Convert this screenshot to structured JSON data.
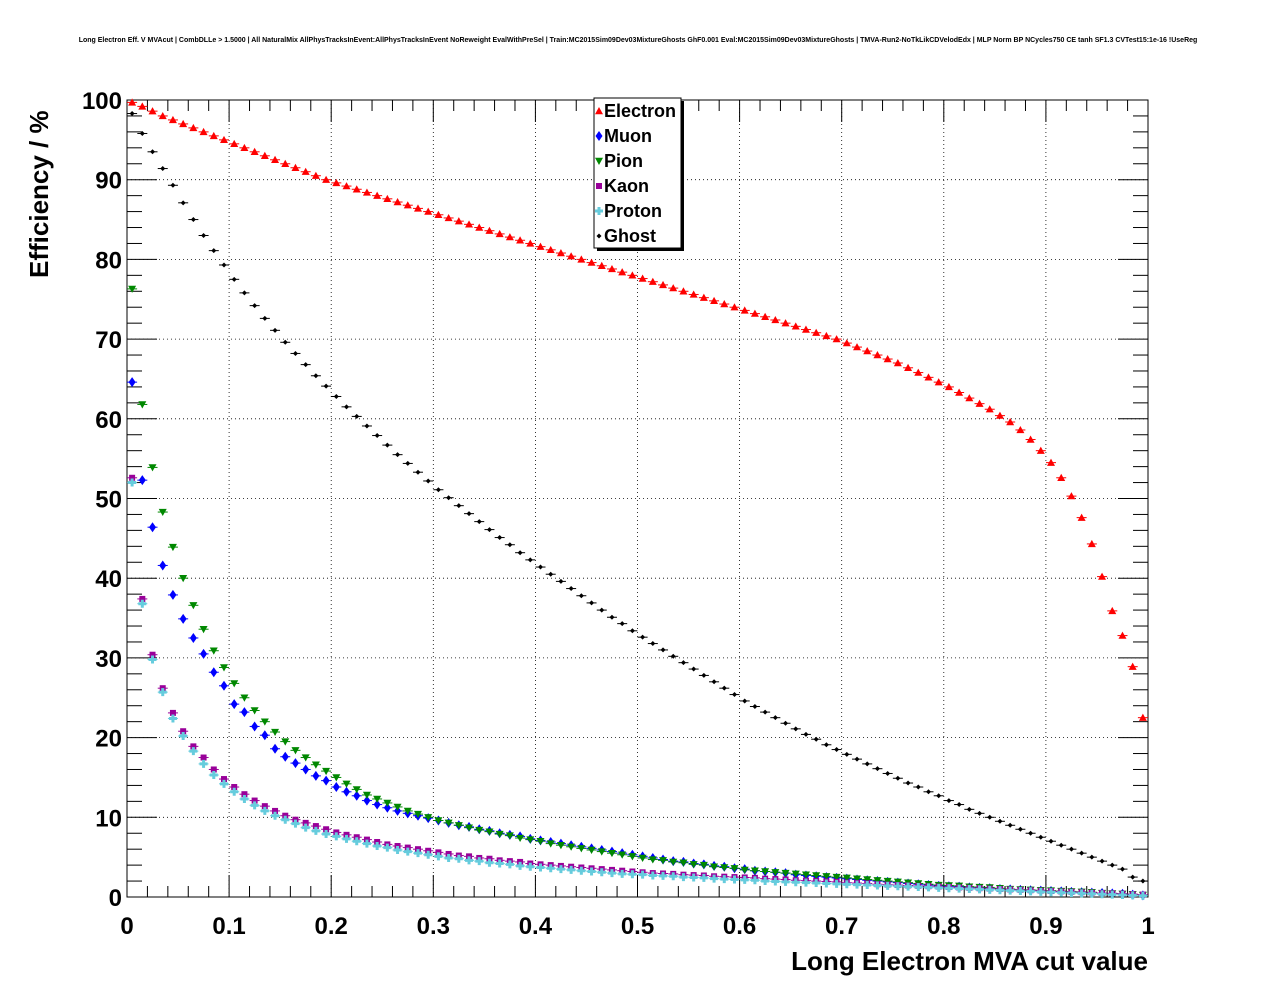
{
  "chart_data": {
    "type": "scatter",
    "title": "Long Electron Eff. V MVAcut | CombDLLe > 1.5000 | All NaturalMix AllPhysTracksInEvent:AllPhysTracksInEvent NoReweight EvalWithPreSel | Train:MC2015Sim09Dev03MixtureGhosts GhF0.001 Eval:MC2015Sim09Dev03MixtureGhosts | TMVA-Run2-NoTkLikCDVelodEdx | MLP Norm BP NCycles750 CE tanh SF1.3 CVTest15:1e-16 !UseReg",
    "xlabel": "Long Electron MVA cut value",
    "ylabel": "Efficiency / %",
    "xlim": [
      0,
      1
    ],
    "ylim": [
      0,
      100
    ],
    "xticks": [
      "0",
      "0.1",
      "0.2",
      "0.3",
      "0.4",
      "0.5",
      "0.6",
      "0.7",
      "0.8",
      "0.9",
      "1"
    ],
    "yticks": [
      "0",
      "10",
      "20",
      "30",
      "40",
      "50",
      "60",
      "70",
      "80",
      "90",
      "100"
    ],
    "grid": true,
    "legend_position": "top-center",
    "x": [
      0.005,
      0.015,
      0.025,
      0.035,
      0.045,
      0.055,
      0.065,
      0.075,
      0.085,
      0.095,
      0.105,
      0.115,
      0.125,
      0.135,
      0.145,
      0.155,
      0.165,
      0.175,
      0.185,
      0.195,
      0.205,
      0.215,
      0.225,
      0.235,
      0.245,
      0.255,
      0.265,
      0.275,
      0.285,
      0.295,
      0.305,
      0.315,
      0.325,
      0.335,
      0.345,
      0.355,
      0.365,
      0.375,
      0.385,
      0.395,
      0.405,
      0.415,
      0.425,
      0.435,
      0.445,
      0.455,
      0.465,
      0.475,
      0.485,
      0.495,
      0.505,
      0.515,
      0.525,
      0.535,
      0.545,
      0.555,
      0.565,
      0.575,
      0.585,
      0.595,
      0.605,
      0.615,
      0.625,
      0.635,
      0.645,
      0.655,
      0.665,
      0.675,
      0.685,
      0.695,
      0.705,
      0.715,
      0.725,
      0.735,
      0.745,
      0.755,
      0.765,
      0.775,
      0.785,
      0.795,
      0.805,
      0.815,
      0.825,
      0.835,
      0.845,
      0.855,
      0.865,
      0.875,
      0.885,
      0.895,
      0.905,
      0.915,
      0.925,
      0.935,
      0.945,
      0.955,
      0.965,
      0.975,
      0.985,
      0.995
    ],
    "series": [
      {
        "name": "Electron",
        "color": "#ff0000",
        "marker": "triangle-up",
        "values": [
          99.7,
          99.2,
          98.6,
          98.0,
          97.5,
          97.0,
          96.5,
          96.0,
          95.5,
          95.0,
          94.5,
          94.0,
          93.5,
          93.0,
          92.5,
          92.0,
          91.5,
          91.0,
          90.5,
          90.0,
          89.6,
          89.2,
          88.8,
          88.4,
          88.0,
          87.6,
          87.2,
          86.8,
          86.4,
          86.0,
          85.6,
          85.2,
          84.8,
          84.4,
          84.0,
          83.6,
          83.2,
          82.8,
          82.4,
          82.0,
          81.6,
          81.2,
          80.8,
          80.4,
          80.0,
          79.6,
          79.2,
          78.8,
          78.4,
          78.0,
          77.6,
          77.2,
          76.8,
          76.4,
          76.0,
          75.6,
          75.2,
          74.8,
          74.4,
          74.0,
          73.6,
          73.2,
          72.8,
          72.4,
          72.0,
          71.6,
          71.2,
          70.8,
          70.4,
          70.0,
          69.5,
          69.0,
          68.5,
          68.0,
          67.5,
          67.0,
          66.4,
          65.8,
          65.2,
          64.6,
          64.0,
          63.3,
          62.6,
          61.9,
          61.2,
          60.4,
          59.6,
          58.6,
          57.4,
          56.0,
          54.5,
          52.6,
          50.3,
          47.6,
          44.3,
          40.2,
          35.9,
          32.8,
          28.9,
          22.5
        ]
      },
      {
        "name": "Muon",
        "color": "#0000ff",
        "marker": "diamond",
        "values": [
          64.6,
          52.3,
          46.4,
          41.6,
          37.9,
          34.9,
          32.5,
          30.5,
          28.2,
          26.5,
          24.2,
          23.2,
          21.4,
          20.3,
          18.6,
          17.6,
          16.8,
          16.0,
          15.2,
          14.6,
          13.8,
          13.2,
          12.7,
          12.1,
          11.6,
          11.2,
          10.8,
          10.5,
          10.2,
          9.9,
          9.6,
          9.3,
          9.0,
          8.8,
          8.5,
          8.3,
          8.0,
          7.8,
          7.6,
          7.3,
          7.1,
          6.9,
          6.7,
          6.5,
          6.3,
          6.1,
          5.9,
          5.7,
          5.5,
          5.3,
          5.1,
          4.9,
          4.7,
          4.5,
          4.4,
          4.2,
          4.1,
          3.9,
          3.8,
          3.6,
          3.5,
          3.3,
          3.2,
          3.1,
          3.0,
          2.8,
          2.7,
          2.6,
          2.5,
          2.4,
          2.3,
          2.2,
          2.1,
          2.0,
          1.9,
          1.8,
          1.7,
          1.6,
          1.5,
          1.4,
          1.35,
          1.3,
          1.2,
          1.15,
          1.1,
          1.0,
          0.95,
          0.9,
          0.85,
          0.8,
          0.75,
          0.7,
          0.65,
          0.6,
          0.55,
          0.5,
          0.45,
          0.4,
          0.3,
          0.2
        ]
      },
      {
        "name": "Pion",
        "color": "#008800",
        "marker": "triangle-down",
        "values": [
          76.3,
          61.8,
          53.9,
          48.3,
          43.9,
          40.0,
          36.6,
          33.6,
          30.9,
          28.8,
          26.8,
          25.0,
          23.4,
          22.0,
          20.7,
          19.5,
          18.4,
          17.5,
          16.6,
          15.8,
          15.0,
          14.2,
          13.5,
          12.8,
          12.3,
          11.8,
          11.3,
          10.8,
          10.4,
          10.0,
          9.6,
          9.3,
          9.0,
          8.7,
          8.4,
          8.2,
          7.9,
          7.7,
          7.4,
          7.2,
          7.0,
          6.7,
          6.5,
          6.3,
          6.1,
          5.9,
          5.7,
          5.5,
          5.3,
          5.1,
          4.9,
          4.7,
          4.6,
          4.4,
          4.3,
          4.1,
          4.0,
          3.8,
          3.7,
          3.6,
          3.4,
          3.3,
          3.2,
          3.1,
          3.0,
          2.9,
          2.8,
          2.7,
          2.6,
          2.5,
          2.4,
          2.3,
          2.2,
          2.1,
          2.0,
          1.9,
          1.8,
          1.7,
          1.6,
          1.5,
          1.45,
          1.4,
          1.3,
          1.25,
          1.2,
          1.1,
          1.0,
          0.95,
          0.9,
          0.85,
          0.8,
          0.75,
          0.7,
          0.65,
          0.6,
          0.5,
          0.45,
          0.4,
          0.35,
          0.25
        ]
      },
      {
        "name": "Kaon",
        "color": "#990099",
        "marker": "square",
        "values": [
          52.6,
          37.4,
          30.4,
          26.2,
          23.1,
          20.8,
          18.9,
          17.5,
          16.0,
          14.8,
          13.8,
          12.9,
          12.1,
          11.4,
          10.8,
          10.2,
          9.7,
          9.3,
          8.9,
          8.5,
          8.1,
          7.8,
          7.5,
          7.2,
          6.9,
          6.6,
          6.4,
          6.2,
          6.0,
          5.8,
          5.6,
          5.4,
          5.2,
          5.1,
          4.9,
          4.8,
          4.6,
          4.5,
          4.4,
          4.2,
          4.1,
          4.0,
          3.9,
          3.8,
          3.7,
          3.6,
          3.5,
          3.4,
          3.3,
          3.2,
          3.1,
          3.0,
          2.95,
          2.9,
          2.8,
          2.75,
          2.7,
          2.6,
          2.55,
          2.5,
          2.45,
          2.4,
          2.3,
          2.25,
          2.2,
          2.1,
          2.05,
          2.0,
          1.95,
          1.9,
          1.8,
          1.75,
          1.7,
          1.6,
          1.55,
          1.5,
          1.45,
          1.4,
          1.35,
          1.3,
          1.25,
          1.2,
          1.15,
          1.1,
          1.05,
          1.0,
          0.95,
          0.9,
          0.85,
          0.8,
          0.75,
          0.7,
          0.65,
          0.6,
          0.55,
          0.5,
          0.45,
          0.4,
          0.35,
          0.3
        ]
      },
      {
        "name": "Proton",
        "color": "#66ccdd",
        "marker": "cross",
        "values": [
          52.0,
          36.8,
          29.8,
          25.7,
          22.4,
          20.2,
          18.3,
          16.7,
          15.3,
          14.2,
          13.2,
          12.3,
          11.5,
          10.8,
          10.2,
          9.7,
          9.2,
          8.7,
          8.3,
          7.9,
          7.6,
          7.3,
          7.0,
          6.7,
          6.4,
          6.2,
          5.9,
          5.7,
          5.5,
          5.3,
          5.1,
          4.9,
          4.8,
          4.6,
          4.5,
          4.3,
          4.2,
          4.1,
          3.9,
          3.8,
          3.7,
          3.6,
          3.5,
          3.4,
          3.3,
          3.2,
          3.1,
          3.0,
          2.9,
          2.85,
          2.8,
          2.7,
          2.65,
          2.6,
          2.5,
          2.45,
          2.4,
          2.3,
          2.25,
          2.2,
          2.15,
          2.1,
          2.0,
          1.95,
          1.9,
          1.85,
          1.8,
          1.75,
          1.7,
          1.65,
          1.6,
          1.55,
          1.5,
          1.45,
          1.4,
          1.35,
          1.3,
          1.25,
          1.2,
          1.15,
          1.1,
          1.05,
          1.0,
          0.95,
          0.9,
          0.85,
          0.8,
          0.75,
          0.7,
          0.65,
          0.6,
          0.55,
          0.5,
          0.45,
          0.4,
          0.35,
          0.3,
          0.25,
          0.2,
          0.15
        ]
      },
      {
        "name": "Ghost",
        "color": "#000000",
        "marker": "diamond",
        "values": [
          98.3,
          95.8,
          93.5,
          91.4,
          89.3,
          87.1,
          85.0,
          83.0,
          81.1,
          79.3,
          77.5,
          75.8,
          74.2,
          72.6,
          71.1,
          69.6,
          68.2,
          66.8,
          65.4,
          64.1,
          62.8,
          61.5,
          60.3,
          59.1,
          57.9,
          56.7,
          55.5,
          54.4,
          53.3,
          52.2,
          51.1,
          50.1,
          49.1,
          48.1,
          47.1,
          46.1,
          45.1,
          44.2,
          43.2,
          42.3,
          41.4,
          40.5,
          39.6,
          38.7,
          37.8,
          36.9,
          36.0,
          35.1,
          34.3,
          33.4,
          32.6,
          31.8,
          31.0,
          30.2,
          29.4,
          28.6,
          27.8,
          27.0,
          26.2,
          25.4,
          24.6,
          23.9,
          23.2,
          22.5,
          21.8,
          21.1,
          20.4,
          19.8,
          19.1,
          18.5,
          17.9,
          17.3,
          16.7,
          16.1,
          15.5,
          14.9,
          14.3,
          13.8,
          13.2,
          12.7,
          12.1,
          11.6,
          11.0,
          10.5,
          10.0,
          9.5,
          9.0,
          8.5,
          8.0,
          7.5,
          7.0,
          6.5,
          6.0,
          5.5,
          5.0,
          4.5,
          4.0,
          3.5,
          2.5,
          2.0
        ]
      }
    ]
  }
}
